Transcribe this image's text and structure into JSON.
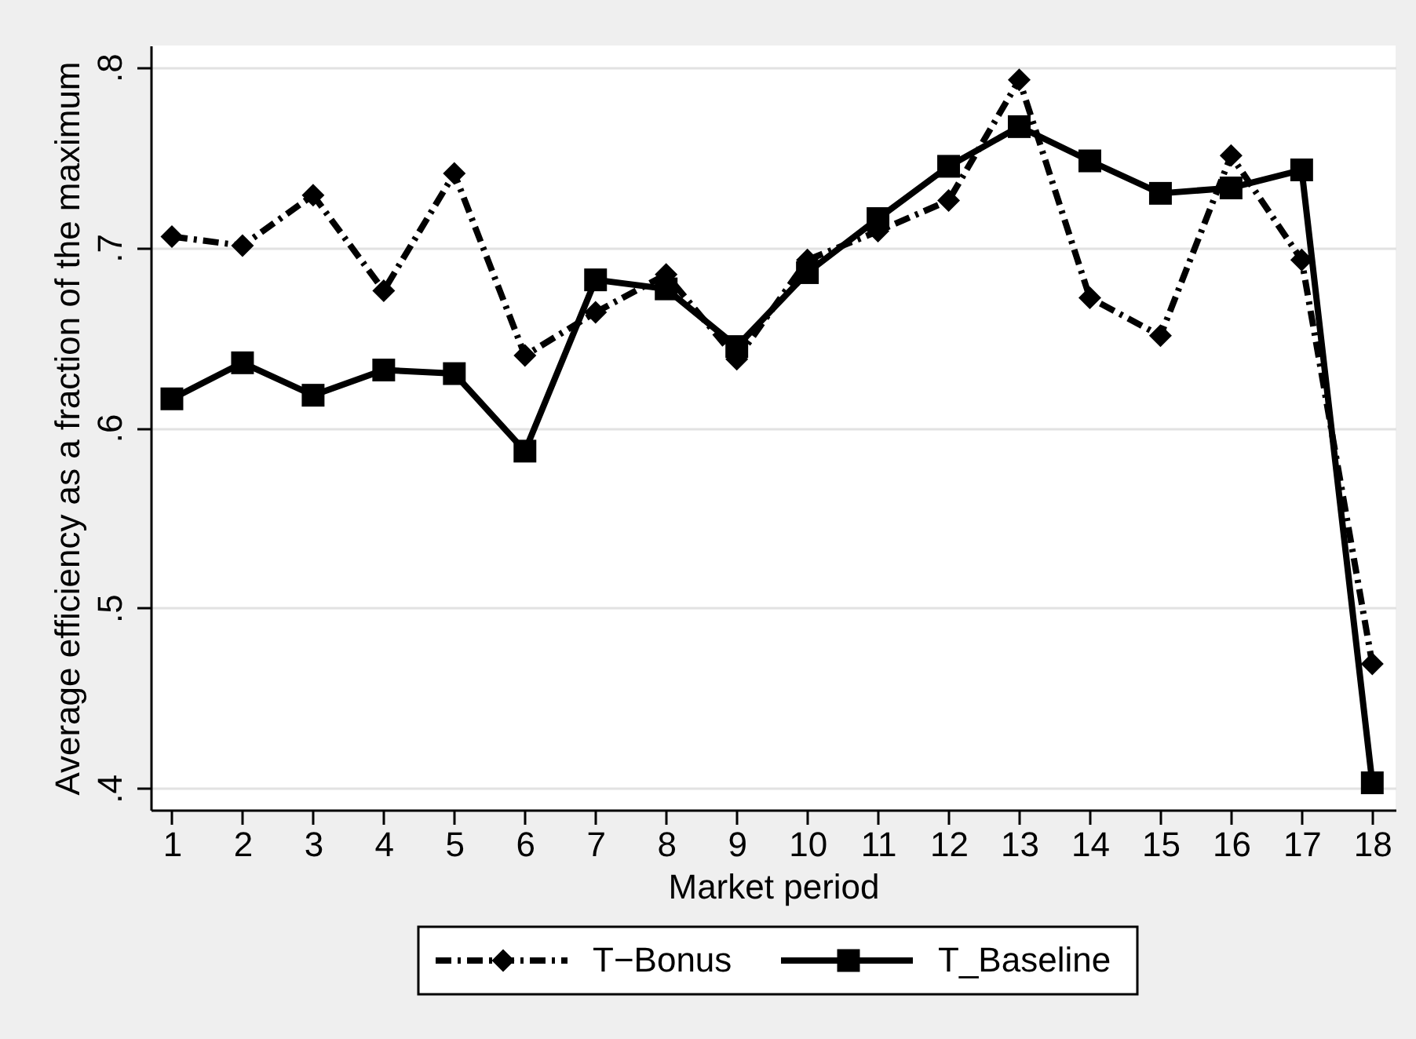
{
  "chart_data": {
    "type": "line",
    "xlabel": "Market period",
    "ylabel": "Average efficiency as a fraction of the maximum",
    "x": [
      1,
      2,
      3,
      4,
      5,
      6,
      7,
      8,
      9,
      10,
      11,
      12,
      13,
      14,
      15,
      16,
      17,
      18
    ],
    "xlim": [
      0.7,
      18.33
    ],
    "xticks": [
      1,
      2,
      3,
      4,
      5,
      6,
      7,
      8,
      9,
      10,
      11,
      12,
      13,
      14,
      15,
      16,
      17,
      18
    ],
    "ylim": [
      0.388,
      0.812
    ],
    "yticks": [
      {
        "value": 0.4,
        "label": ".4"
      },
      {
        "value": 0.5,
        "label": ".5"
      },
      {
        "value": 0.6,
        "label": ".6"
      },
      {
        "value": 0.7,
        "label": ".7"
      },
      {
        "value": 0.8,
        "label": ".8"
      }
    ],
    "grid": "y",
    "legend": "bottom",
    "series": [
      {
        "name": "T−Bonus",
        "color": "#000000",
        "marker": "diamond",
        "line_style": "dashed",
        "values": [
          0.706,
          0.701,
          0.729,
          0.676,
          0.741,
          0.64,
          0.664,
          0.685,
          0.638,
          0.693,
          0.709,
          0.726,
          0.793,
          0.672,
          0.651,
          0.751,
          0.693,
          0.469
        ]
      },
      {
        "name": "T_Baseline",
        "color": "#000000",
        "marker": "square",
        "line_style": "solid",
        "values": [
          0.616,
          0.636,
          0.618,
          0.632,
          0.63,
          0.587,
          0.682,
          0.677,
          0.645,
          0.686,
          0.716,
          0.745,
          0.767,
          0.748,
          0.73,
          0.733,
          0.743,
          0.403
        ]
      }
    ]
  }
}
